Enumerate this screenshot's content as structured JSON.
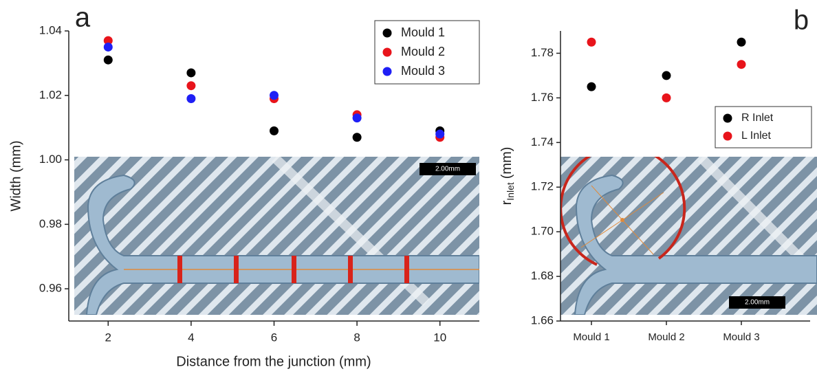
{
  "chart_data": [
    {
      "type": "scatter",
      "panel_label": "a",
      "xlabel": "Distance from the junction (mm)",
      "ylabel": "Width (mm)",
      "x": [
        2,
        4,
        6,
        8,
        10
      ],
      "series": [
        {
          "name": "Mould 1",
          "color": "#000000",
          "values": [
            1.031,
            1.027,
            1.009,
            1.007,
            1.009
          ]
        },
        {
          "name": "Mould 2",
          "color": "#e8141b",
          "values": [
            1.037,
            1.023,
            1.019,
            1.014,
            1.007
          ]
        },
        {
          "name": "Mould 3",
          "color": "#1f1ff5",
          "values": [
            1.035,
            1.019,
            1.02,
            1.013,
            1.008
          ]
        }
      ],
      "xlim": [
        1.05,
        10.95
      ],
      "xticks": [
        2,
        4,
        6,
        8,
        10
      ],
      "ylim": [
        0.95,
        1.04
      ],
      "yticks": [
        0.96,
        0.98,
        {
          "value": 1,
          "label": "1.00"
        },
        1.02,
        1.04
      ],
      "legend_loc": "upper right",
      "grid": false,
      "inset": {
        "scale_bar": "2.00mm"
      }
    },
    {
      "type": "scatter",
      "panel_label": "b",
      "ylabel": {
        "base": "r",
        "subscript": "Inlet",
        "unit": "(mm)"
      },
      "categories": [
        "Mould 1",
        "Mould 2",
        "Mould 3"
      ],
      "series": [
        {
          "name": "R Inlet",
          "color": "#000000",
          "values": [
            1.765,
            1.77,
            1.785
          ]
        },
        {
          "name": "L Inlet",
          "color": "#e8141b",
          "values": [
            1.785,
            1.76,
            1.775
          ]
        }
      ],
      "ylim": [
        1.66,
        1.79
      ],
      "yticks": [
        1.66,
        1.68,
        {
          "value": 1.7,
          "label": "1.70"
        },
        1.72,
        1.74,
        1.76,
        1.78
      ],
      "legend_loc": "right",
      "grid": false,
      "inset": {
        "scale_bar": "2.00mm"
      }
    }
  ]
}
